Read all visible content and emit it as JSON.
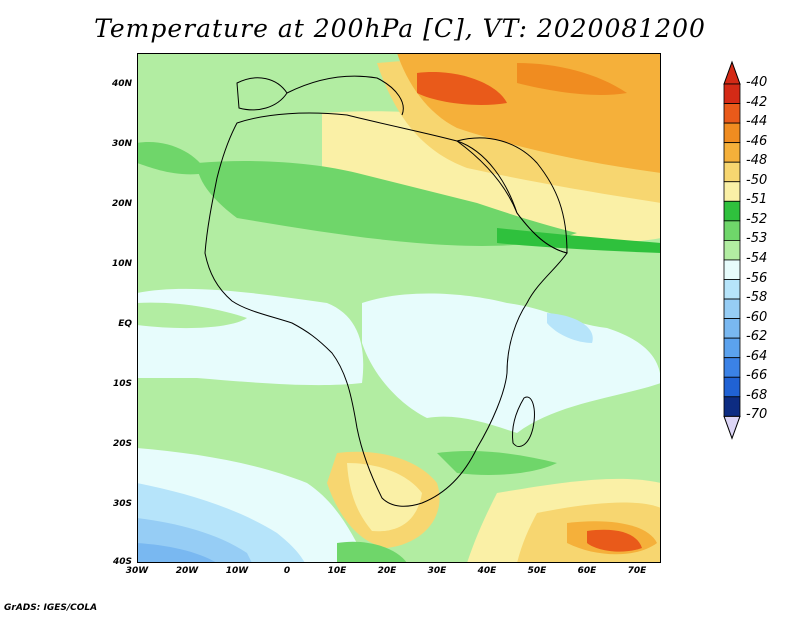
{
  "title": "Temperature at 200hPa [C], VT: 2020081200",
  "credit": "GrADS: IGES/COLA",
  "map": {
    "lon_range": [
      -30,
      75
    ],
    "lat_range": [
      -40,
      45
    ],
    "y_ticks": [
      "40N",
      "30N",
      "20N",
      "10N",
      "EQ",
      "10S",
      "20S",
      "30S",
      "40S"
    ],
    "x_ticks": [
      "30W",
      "20W",
      "10W",
      "0",
      "10E",
      "20E",
      "30E",
      "40E",
      "50E",
      "60E",
      "70E"
    ]
  },
  "colorbar": {
    "labels": [
      "-40",
      "-42",
      "-44",
      "-46",
      "-48",
      "-50",
      "-51",
      "-52",
      "-53",
      "-54",
      "-56",
      "-58",
      "-60",
      "-62",
      "-64",
      "-66",
      "-68",
      "-70"
    ],
    "colors": [
      "#d42a16",
      "#e95a1a",
      "#f08c20",
      "#f5b03a",
      "#f7d670",
      "#faf0a6",
      "#2fc13d",
      "#6fd66a",
      "#b2eda2",
      "#e7fcfc",
      "#b6e4fa",
      "#96cdf5",
      "#79b8f1",
      "#5ba2ee",
      "#3b82e6",
      "#2062d4",
      "#0d2c82"
    ],
    "over_color": "#d42a16",
    "under_color": "#ddd6f6"
  }
}
